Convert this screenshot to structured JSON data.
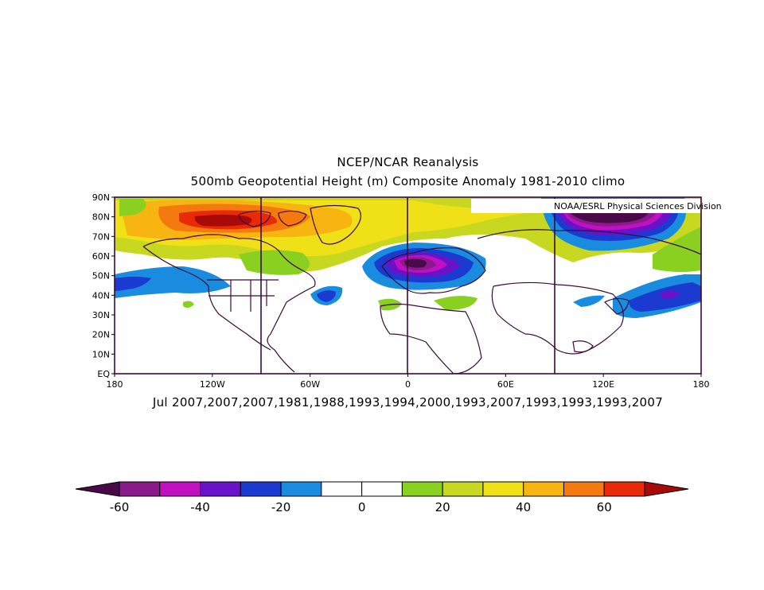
{
  "title": "NCEP/NCAR Reanalysis",
  "subtitle": "500mb Geopotential Height (m) Composite Anomaly 1981-2010 climo",
  "credit": "NOAA/ESRL Physical Sciences Division",
  "caption": "Jul 2007,2007,2007,1981,1988,1993,1994,2000,1993,2007,1993,1993,1993,2007",
  "map": {
    "lat_range": [
      0,
      90
    ],
    "lon_range": [
      -180,
      180
    ],
    "lat_ticks": [
      "EQ",
      "10N",
      "20N",
      "30N",
      "40N",
      "50N",
      "60N",
      "70N",
      "80N",
      "90N"
    ],
    "lon_ticks": [
      "180",
      "120W",
      "60W",
      "0",
      "60E",
      "120E",
      "180"
    ],
    "vertical_lines_lon": [
      -90,
      0,
      90
    ]
  },
  "colorbar": {
    "labels": [
      "-60",
      "-40",
      "-20",
      "0",
      "20",
      "40",
      "60"
    ],
    "colors": [
      "#4a0a4a",
      "#8a1a8a",
      "#c010c0",
      "#6a12c8",
      "#1a3ad0",
      "#1a8ce0",
      "#ffffff",
      "#ffffff",
      "#8ad020",
      "#c8d820",
      "#f0e018",
      "#f8b410",
      "#f47a10",
      "#e82a08",
      "#a80a08"
    ]
  },
  "anomalies": [
    {
      "region": "Arctic Canada / Greenland",
      "value": 60
    },
    {
      "region": "Northern Europe / Scandinavia",
      "value": -60
    },
    {
      "region": "Eastern Siberia",
      "value": -60
    },
    {
      "region": "North Pacific",
      "value": -20
    },
    {
      "region": "Central Mediterranean",
      "value": 20
    }
  ]
}
